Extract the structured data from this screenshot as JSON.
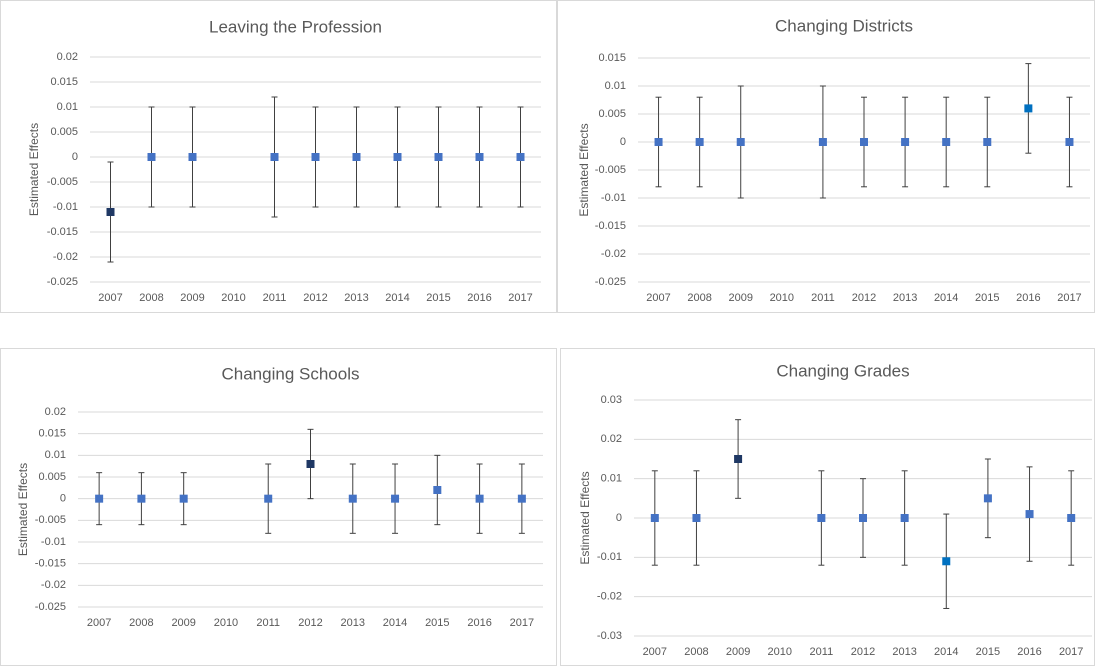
{
  "chart_data": [
    {
      "type": "errorbar",
      "title": "Leaving the Profession",
      "y_label": "Estimated Effects",
      "categories": [
        "2007",
        "2008",
        "2009",
        "2010",
        "2011",
        "2012",
        "2013",
        "2014",
        "2015",
        "2016",
        "2017"
      ],
      "values": [
        -0.011,
        0,
        0,
        null,
        0,
        0,
        0,
        0,
        0,
        0,
        0
      ],
      "errors": [
        0.01,
        0.01,
        0.01,
        null,
        0.012,
        0.01,
        0.01,
        0.01,
        0.01,
        0.01,
        0.01
      ],
      "colors": [
        "#1f3864",
        "#4472c4",
        "#4472c4",
        null,
        "#4472c4",
        "#4472c4",
        "#4472c4",
        "#4472c4",
        "#4472c4",
        "#4472c4",
        "#4472c4"
      ],
      "ylim": [
        -0.025,
        0.02
      ],
      "yticks": [
        -0.025,
        -0.02,
        -0.015,
        -0.01,
        -0.005,
        0,
        0.005,
        0.01,
        0.015,
        0.02
      ],
      "grid": true
    },
    {
      "type": "errorbar",
      "title": "Changing Districts",
      "y_label": "Estimated Effects",
      "categories": [
        "2007",
        "2008",
        "2009",
        "2010",
        "2011",
        "2012",
        "2013",
        "2014",
        "2015",
        "2016",
        "2017"
      ],
      "values": [
        0,
        0,
        0,
        null,
        0,
        0,
        0,
        0,
        0,
        0.006,
        0
      ],
      "errors": [
        0.008,
        0.008,
        0.01,
        null,
        0.01,
        0.008,
        0.008,
        0.008,
        0.008,
        0.008,
        0.008
      ],
      "colors": [
        "#4472c4",
        "#4472c4",
        "#4472c4",
        null,
        "#4472c4",
        "#4472c4",
        "#4472c4",
        "#4472c4",
        "#4472c4",
        "#0070c0",
        "#4472c4"
      ],
      "ylim": [
        -0.025,
        0.015
      ],
      "yticks": [
        -0.025,
        -0.02,
        -0.015,
        -0.01,
        -0.005,
        0,
        0.005,
        0.01,
        0.015
      ],
      "grid": true
    },
    {
      "type": "errorbar",
      "title": "Changing Schools",
      "y_label": "Estimated Effects",
      "categories": [
        "2007",
        "2008",
        "2009",
        "2010",
        "2011",
        "2012",
        "2013",
        "2014",
        "2015",
        "2016",
        "2017"
      ],
      "values": [
        0,
        0,
        0,
        null,
        0,
        0.008,
        0,
        0,
        0.002,
        0,
        0
      ],
      "errors": [
        0.006,
        0.006,
        0.006,
        null,
        0.008,
        0.008,
        0.008,
        0.008,
        0.008,
        0.008,
        0.008
      ],
      "colors": [
        "#4472c4",
        "#4472c4",
        "#4472c4",
        null,
        "#4472c4",
        "#1f3864",
        "#4472c4",
        "#4472c4",
        "#4472c4",
        "#4472c4",
        "#4472c4"
      ],
      "ylim": [
        -0.025,
        0.02
      ],
      "yticks": [
        -0.025,
        -0.02,
        -0.015,
        -0.01,
        -0.005,
        0,
        0.005,
        0.01,
        0.015,
        0.02
      ],
      "grid": true
    },
    {
      "type": "errorbar",
      "title": "Changing Grades",
      "y_label": "Estimated Effects",
      "categories": [
        "2007",
        "2008",
        "2009",
        "2010",
        "2011",
        "2012",
        "2013",
        "2014",
        "2015",
        "2016",
        "2017"
      ],
      "values": [
        0,
        0,
        0.015,
        null,
        0,
        0,
        0,
        -0.011,
        0.005,
        0.001,
        0
      ],
      "errors": [
        0.012,
        0.012,
        0.01,
        null,
        0.012,
        0.01,
        0.012,
        0.012,
        0.01,
        0.012,
        0.012
      ],
      "colors": [
        "#4472c4",
        "#4472c4",
        "#1f3864",
        null,
        "#4472c4",
        "#4472c4",
        "#4472c4",
        "#0070c0",
        "#4472c4",
        "#4472c4",
        "#4472c4"
      ],
      "ylim": [
        -0.03,
        0.03
      ],
      "yticks": [
        -0.03,
        -0.02,
        -0.01,
        0,
        0.01,
        0.02,
        0.03
      ],
      "grid": true
    }
  ]
}
